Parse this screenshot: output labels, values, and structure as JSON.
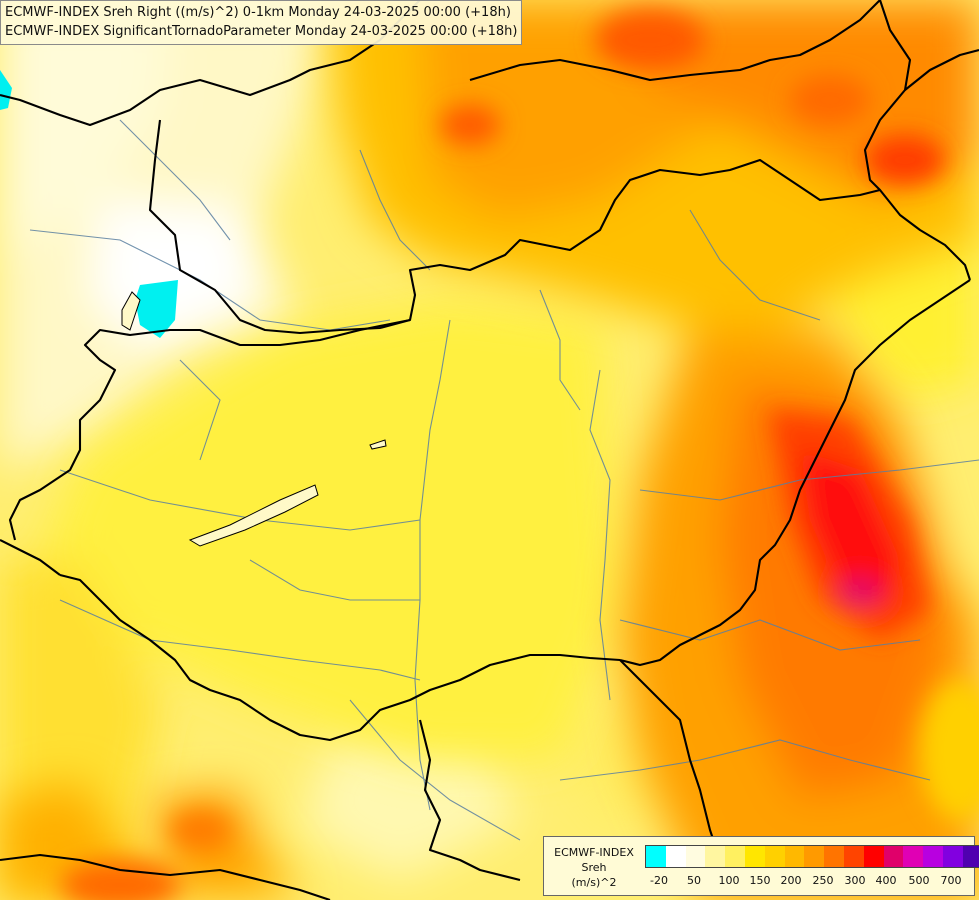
{
  "header": {
    "title_line1": "ECMWF-INDEX Sreh Right ((m/s)^2) 0-1km Monday 24-03-2025 00:00 (+18h)",
    "title_line2": "ECMWF-INDEX SignificantTornadoParameter Monday 24-03-2025 00:00 (+18h)"
  },
  "legend": {
    "line1": "ECMWF-INDEX",
    "line2": "Sreh",
    "line3": "(m/s)^2",
    "swatch_colors": [
      "#00ffff",
      "#ffffff",
      "#fffce0",
      "#fff6a0",
      "#fff060",
      "#ffe600",
      "#ffd000",
      "#ffb800",
      "#ff9a00",
      "#ff7400",
      "#ff4400",
      "#ff0000",
      "#e0006a",
      "#e000b4",
      "#b800e0",
      "#8200e0",
      "#5000b0",
      "#1e0078"
    ],
    "tick_labels": [
      "-20",
      "50",
      "100",
      "150",
      "200",
      "250",
      "300",
      "400",
      "500",
      "700"
    ]
  },
  "colors": {
    "country_border": "#000000",
    "river": "#5a7fa0",
    "cyan_zone": "#00e8f0"
  }
}
